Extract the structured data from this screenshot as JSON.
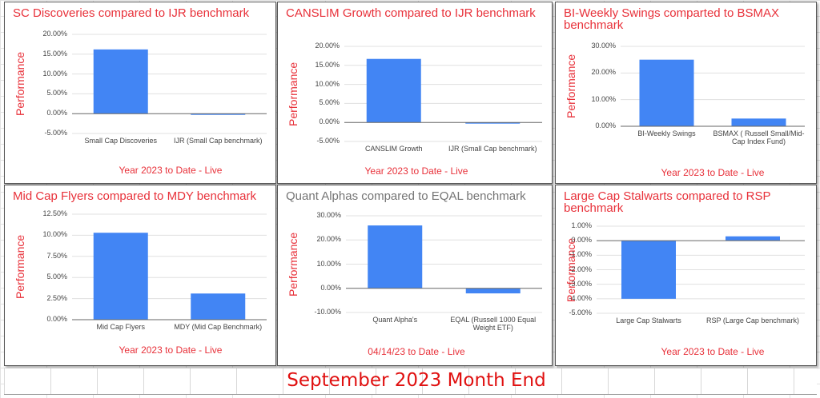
{
  "bar_color": "#4285f4",
  "title_color": "#e8313a",
  "footer": {
    "text": "September 2023 Month End",
    "color": "#e01010"
  },
  "chart_data": [
    {
      "type": "bar",
      "title": "SC Discoveries compared to IJR benchmark",
      "title_color": "#e8313a",
      "ylabel": "Performance",
      "xlabel": "Year 2023 to Date - Live",
      "categories": [
        "Small Cap Discoveries",
        "IJR (Small Cap benchmark)"
      ],
      "values": [
        16.2,
        -0.3
      ],
      "ylim": [
        -5,
        20
      ],
      "yticks": [
        "-5.00%",
        "0.00%",
        "5.00%",
        "10.00%",
        "15.00%",
        "20.00%"
      ],
      "tick_values": [
        -5,
        0,
        5,
        10,
        15,
        20
      ],
      "grid": true
    },
    {
      "type": "bar",
      "title": "CANSLIM Growth compared to IJR benchmark",
      "title_color": "#e8313a",
      "ylabel": "Performance",
      "xlabel": "Year 2023 to Date - Live",
      "categories": [
        "CANSLIM Growth",
        "IJR (Small Cap benchmark)"
      ],
      "values": [
        16.7,
        -0.3
      ],
      "ylim": [
        -5,
        20
      ],
      "yticks": [
        "-5.00%",
        "0.00%",
        "5.00%",
        "10.00%",
        "15.00%",
        "20.00%"
      ],
      "tick_values": [
        -5,
        0,
        5,
        10,
        15,
        20
      ],
      "grid": true
    },
    {
      "type": "bar",
      "title": "BI-Weekly Swings comparted to BSMAX benchmark",
      "title_color": "#e8313a",
      "ylabel": "Performance",
      "xlabel": "Year 2023 to Date - Live",
      "categories": [
        "BI-Weekly Swings",
        "BSMAX ( Russell Small/Mid-Cap Index Fund)"
      ],
      "values": [
        25.0,
        2.9
      ],
      "ylim": [
        0,
        30
      ],
      "yticks": [
        "0.00%",
        "10.00%",
        "20.00%",
        "30.00%"
      ],
      "tick_values": [
        0,
        10,
        20,
        30
      ],
      "grid": true
    },
    {
      "type": "bar",
      "title": "Mid Cap Flyers compared to MDY benchmark",
      "title_color": "#e8313a",
      "ylabel": "Performance",
      "xlabel": "Year 2023 to Date - Live",
      "categories": [
        "Mid Cap Flyers",
        "MDY (Mid Cap Benchmark)"
      ],
      "values": [
        10.3,
        3.1
      ],
      "ylim": [
        0,
        12.5
      ],
      "yticks": [
        "0.00%",
        "2.50%",
        "5.00%",
        "7.50%",
        "10.00%",
        "12.50%"
      ],
      "tick_values": [
        0,
        2.5,
        5,
        7.5,
        10,
        12.5
      ],
      "grid": true
    },
    {
      "type": "bar",
      "title": "Quant Alphas compared to EQAL benchmark",
      "title_color": "#757575",
      "ylabel": "Performance",
      "xlabel": "04/14/23 to Date - Live",
      "categories": [
        "Quant Alpha's",
        "EQAL (Russell 1000 Equal Weight ETF)"
      ],
      "values": [
        26.0,
        -2.1
      ],
      "ylim": [
        -10,
        30
      ],
      "yticks": [
        "-10.00%",
        "0.00%",
        "10.00%",
        "20.00%",
        "30.00%"
      ],
      "tick_values": [
        -10,
        0,
        10,
        20,
        30
      ],
      "grid": true
    },
    {
      "type": "bar",
      "title": "Large Cap Stalwarts compared to RSP benchmark",
      "title_color": "#e8313a",
      "ylabel": "Performance",
      "xlabel": "Year 2023 to Date - Live",
      "categories": [
        "Large Cap Stalwarts",
        "RSP (Large Cap benchmark)"
      ],
      "values": [
        -4.0,
        0.3
      ],
      "ylim": [
        -5,
        1
      ],
      "yticks": [
        "-5.00%",
        "-4.00%",
        "-3.00%",
        "-2.00%",
        "-1.00%",
        "0.00%",
        "1.00%"
      ],
      "tick_values": [
        -5,
        -4,
        -3,
        -2,
        -1,
        0,
        1
      ],
      "grid": true
    }
  ]
}
